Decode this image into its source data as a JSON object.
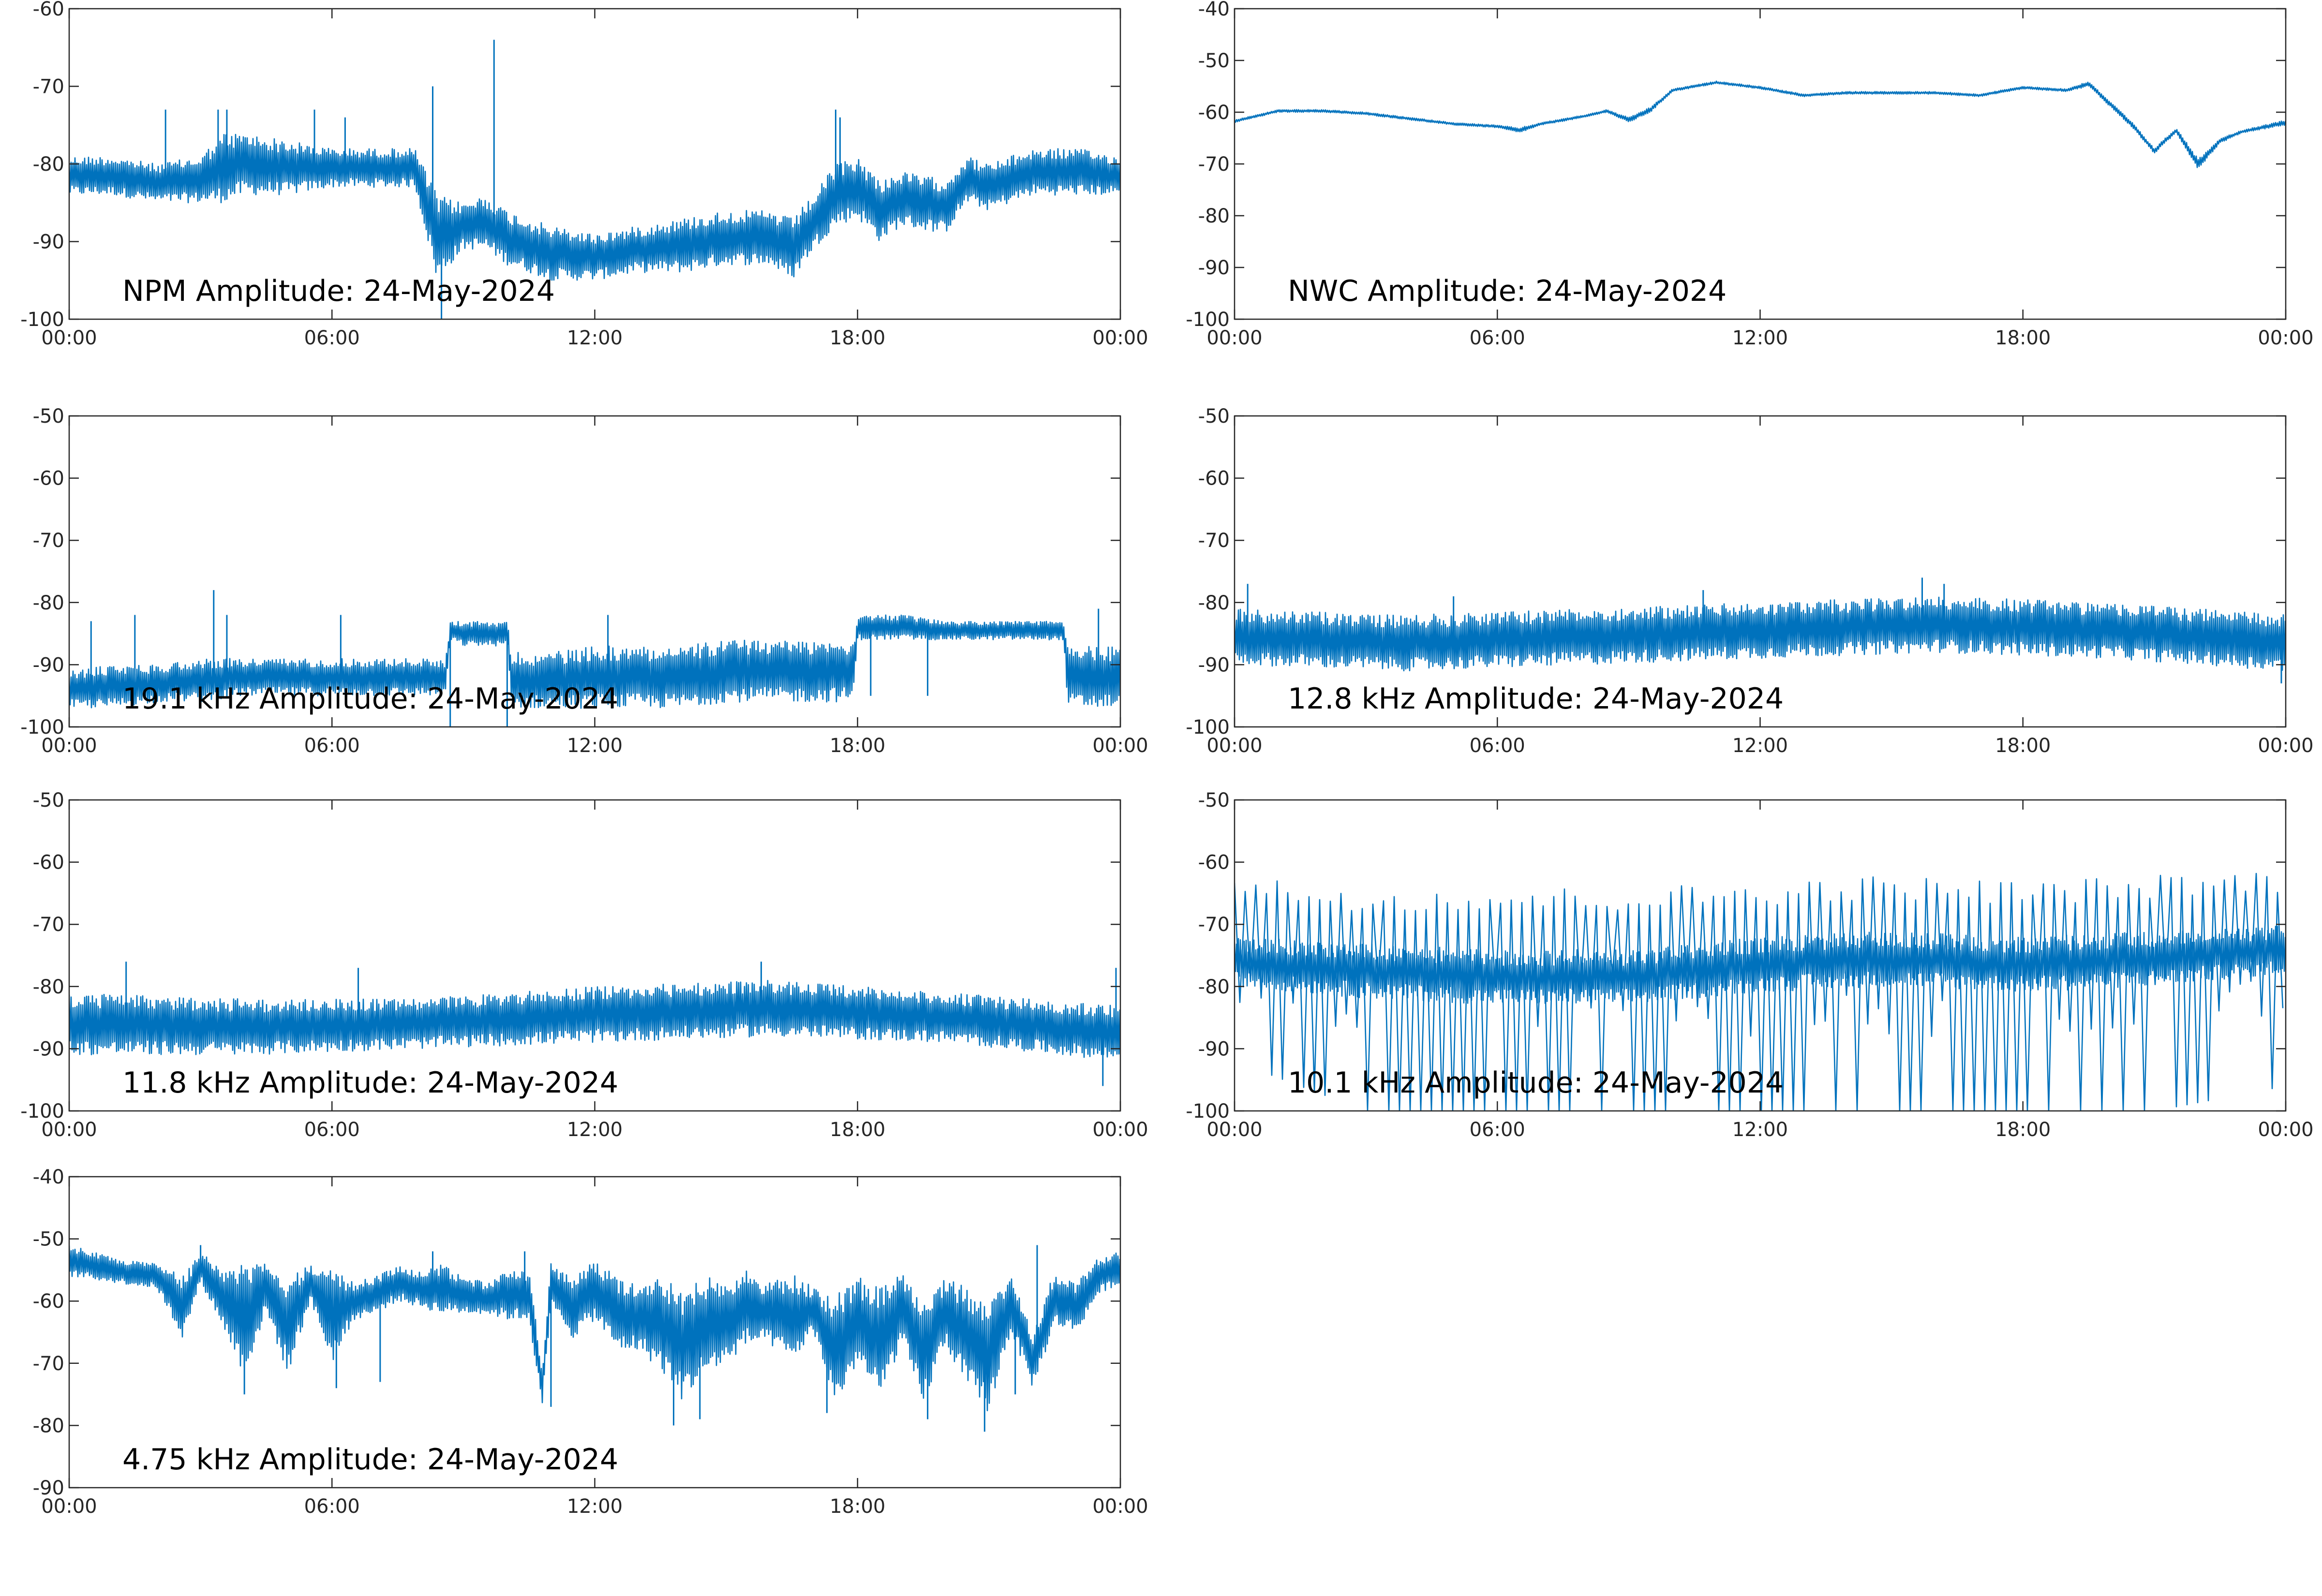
{
  "figure": {
    "line_color": "#0072BD",
    "axis_color": "#262626",
    "background": "#ffffff"
  },
  "chart_data": [
    {
      "type": "line",
      "title": "NPM Amplitude: 24-May-2024",
      "x_ticks": [
        "00:00",
        "06:00",
        "12:00",
        "18:00",
        "00:00"
      ],
      "x_range_hours": [
        0,
        24
      ],
      "ylim": [
        -100,
        -60
      ],
      "y_ticks": [
        -100,
        -90,
        -80,
        -70,
        -60
      ],
      "grid": false,
      "series": [
        {
          "kind": "band",
          "x": [
            0,
            1,
            2,
            3,
            3.5,
            4,
            5,
            6,
            7,
            7.9,
            8.4,
            9,
            9.5,
            10,
            11,
            12,
            13,
            14,
            15,
            16,
            16.5,
            17,
            17.5,
            18,
            18.5,
            19,
            20,
            20.5,
            21,
            22,
            23,
            24
          ],
          "upper": [
            -79,
            -79,
            -80,
            -79,
            -76,
            -76,
            -77,
            -78,
            -78,
            -78,
            -84,
            -85,
            -84,
            -86,
            -88,
            -89,
            -88,
            -87,
            -86,
            -86,
            -87,
            -84,
            -80,
            -79,
            -82,
            -81,
            -82,
            -79,
            -80,
            -78,
            -78,
            -79
          ],
          "lower": [
            -84,
            -84,
            -85,
            -85,
            -85,
            -84,
            -84,
            -83,
            -83,
            -83,
            -95,
            -91,
            -91,
            -93,
            -95,
            -95,
            -94,
            -94,
            -93,
            -93,
            -95,
            -91,
            -88,
            -87,
            -90,
            -88,
            -89,
            -85,
            -86,
            -84,
            -84,
            -84
          ],
          "spikes": [
            [
              2.2,
              -73
            ],
            [
              3.4,
              -73
            ],
            [
              3.6,
              -73
            ],
            [
              5.6,
              -73
            ],
            [
              6.3,
              -74
            ],
            [
              8.3,
              -70
            ],
            [
              8.5,
              -100
            ],
            [
              9.7,
              -64
            ],
            [
              17.5,
              -73
            ],
            [
              17.6,
              -74
            ]
          ]
        }
      ]
    },
    {
      "type": "line",
      "title": "NWC Amplitude: 24-May-2024",
      "x_ticks": [
        "00:00",
        "06:00",
        "12:00",
        "18:00",
        "00:00"
      ],
      "x_range_hours": [
        0,
        24
      ],
      "ylim": [
        -100,
        -40
      ],
      "y_ticks": [
        -100,
        -90,
        -80,
        -70,
        -60,
        -50,
        -40
      ],
      "grid": false,
      "series": [
        {
          "kind": "band",
          "x": [
            0,
            1,
            2,
            3,
            4,
            5,
            6,
            6.5,
            7,
            8,
            8.5,
            9,
            9.5,
            10,
            11,
            12,
            13,
            14,
            15,
            16,
            17,
            18,
            19,
            19.5,
            20,
            20.5,
            21,
            21.5,
            22,
            22.5,
            23,
            24
          ],
          "upper": [
            -61.5,
            -59.5,
            -59.5,
            -60,
            -61,
            -62,
            -62.5,
            -63,
            -62,
            -60.5,
            -59.5,
            -61,
            -59,
            -55.5,
            -54,
            -55,
            -56.5,
            -56,
            -56,
            -56,
            -56.5,
            -55,
            -55.5,
            -54,
            -58,
            -62,
            -67,
            -63,
            -69,
            -65,
            -63.5,
            -61.5
          ],
          "lower": [
            -62,
            -60,
            -60,
            -60.5,
            -61.5,
            -62.5,
            -63,
            -64,
            -62.5,
            -61,
            -60,
            -62,
            -60,
            -56,
            -54.5,
            -55.5,
            -57,
            -56.5,
            -56.5,
            -56.5,
            -57,
            -55.5,
            -56,
            -55,
            -59,
            -63,
            -68,
            -64,
            -71,
            -66,
            -64,
            -62.5
          ],
          "spikes": []
        }
      ]
    },
    {
      "type": "line",
      "title": "19.1 kHz Amplitude: 24-May-2024",
      "x_ticks": [
        "00:00",
        "06:00",
        "12:00",
        "18:00",
        "00:00"
      ],
      "x_range_hours": [
        0,
        24
      ],
      "ylim": [
        -100,
        -50
      ],
      "y_ticks": [
        -100,
        -90,
        -80,
        -70,
        -60,
        -50
      ],
      "grid": false,
      "series": [
        {
          "kind": "band",
          "x": [
            0,
            1,
            2,
            3,
            4,
            5,
            6,
            7,
            8,
            8.6,
            8.7,
            9,
            9.5,
            10,
            10.1,
            11,
            12,
            13,
            14,
            15,
            16,
            17,
            17.9,
            18,
            19,
            20,
            21,
            22,
            22.7,
            22.8,
            24
          ],
          "upper": [
            -91,
            -90,
            -90,
            -89,
            -89,
            -89,
            -89,
            -89,
            -89,
            -89,
            -83,
            -83,
            -83,
            -83,
            -88,
            -88,
            -87,
            -87,
            -87,
            -86,
            -86,
            -86,
            -86,
            -82,
            -82,
            -83,
            -83,
            -83,
            -83,
            -87,
            -87
          ],
          "lower": [
            -97,
            -97,
            -96,
            -96,
            -95,
            -95,
            -95,
            -95,
            -95,
            -95,
            -86,
            -87,
            -87,
            -87,
            -97,
            -97,
            -97,
            -97,
            -97,
            -96,
            -96,
            -96,
            -96,
            -86,
            -86,
            -86,
            -86,
            -86,
            -86,
            -97,
            -97
          ],
          "spikes": [
            [
              0.5,
              -83
            ],
            [
              1.5,
              -82
            ],
            [
              3.3,
              -78
            ],
            [
              3.6,
              -82
            ],
            [
              6.2,
              -82
            ],
            [
              8.7,
              -100
            ],
            [
              10.0,
              -100
            ],
            [
              12.3,
              -82
            ],
            [
              18.3,
              -95
            ],
            [
              19.6,
              -95
            ],
            [
              23.5,
              -81
            ]
          ]
        }
      ]
    },
    {
      "type": "line",
      "title": "12.8 kHz Amplitude: 24-May-2024",
      "x_ticks": [
        "00:00",
        "06:00",
        "12:00",
        "18:00",
        "00:00"
      ],
      "x_range_hours": [
        0,
        24
      ],
      "ylim": [
        -100,
        -50
      ],
      "y_ticks": [
        -100,
        -90,
        -80,
        -70,
        -60,
        -50
      ],
      "grid": false,
      "series": [
        {
          "kind": "band",
          "x": [
            0,
            4,
            8,
            12,
            16,
            20,
            24
          ],
          "upper": [
            -81,
            -82,
            -81,
            -80,
            -79,
            -80,
            -82
          ],
          "lower": [
            -90,
            -91,
            -90,
            -89,
            -88,
            -89,
            -91
          ],
          "spikes": [
            [
              0.3,
              -77
            ],
            [
              5.0,
              -79
            ],
            [
              10.7,
              -78
            ],
            [
              15.7,
              -76
            ],
            [
              16.2,
              -77
            ],
            [
              23.9,
              -93
            ]
          ]
        }
      ]
    },
    {
      "type": "line",
      "title": "11.8 kHz Amplitude: 24-May-2024",
      "x_ticks": [
        "00:00",
        "06:00",
        "12:00",
        "18:00",
        "00:00"
      ],
      "x_range_hours": [
        0,
        24
      ],
      "ylim": [
        -100,
        -50
      ],
      "y_ticks": [
        -100,
        -90,
        -80,
        -70,
        -60,
        -50
      ],
      "grid": false,
      "series": [
        {
          "kind": "band",
          "x": [
            0,
            4,
            8,
            12,
            16,
            20,
            24
          ],
          "upper": [
            -81,
            -82,
            -82,
            -80,
            -79,
            -81,
            -83
          ],
          "lower": [
            -91,
            -91,
            -90,
            -89,
            -88,
            -89,
            -92
          ],
          "spikes": [
            [
              1.3,
              -76
            ],
            [
              6.6,
              -77
            ],
            [
              15.8,
              -76
            ],
            [
              23.6,
              -96
            ],
            [
              23.9,
              -77
            ]
          ]
        }
      ]
    },
    {
      "type": "line",
      "title": "10.1 kHz Amplitude: 24-May-2024",
      "x_ticks": [
        "00:00",
        "06:00",
        "12:00",
        "18:00",
        "00:00"
      ],
      "x_range_hours": [
        0,
        24
      ],
      "ylim": [
        -100,
        -50
      ],
      "y_ticks": [
        -100,
        -90,
        -80,
        -70,
        -60,
        -50
      ],
      "grid": false,
      "series": [
        {
          "kind": "oscillation",
          "x": [
            0,
            3,
            6,
            9,
            12,
            15,
            18,
            21,
            24
          ],
          "peaks": [
            -64,
            -66,
            -66,
            -66,
            -65,
            -64,
            -65,
            -64,
            -63
          ],
          "mid_upper": [
            -72,
            -73,
            -74,
            -74,
            -72,
            -71,
            -72,
            -71,
            -70
          ],
          "mid_lower": [
            -80,
            -82,
            -83,
            -83,
            -81,
            -80,
            -81,
            -80,
            -78
          ],
          "troughs": [
            -92,
            -100,
            -100,
            -100,
            -100,
            -100,
            -100,
            -100,
            -96
          ]
        }
      ]
    },
    {
      "type": "line",
      "title": "4.75 kHz Amplitude: 24-May-2024",
      "x_ticks": [
        "00:00",
        "06:00",
        "12:00",
        "18:00",
        "00:00"
      ],
      "x_range_hours": [
        0,
        24
      ],
      "ylim": [
        -90,
        -40
      ],
      "y_ticks": [
        -90,
        -80,
        -70,
        -60,
        -50,
        -40
      ],
      "grid": false,
      "series": [
        {
          "kind": "band",
          "x": [
            0,
            1,
            2,
            2.6,
            3,
            3.5,
            4,
            4.5,
            5,
            5.5,
            6,
            6.5,
            7,
            7.5,
            8,
            8.5,
            9,
            9.5,
            10,
            10.5,
            10.8,
            11,
            11.5,
            12,
            12.5,
            13,
            13.5,
            14,
            14.5,
            15,
            15.5,
            16,
            16.5,
            17,
            17.5,
            18,
            18.5,
            19,
            19.5,
            20,
            20.5,
            21,
            21.5,
            22,
            22.5,
            23,
            23.5,
            24
          ],
          "upper": [
            -51,
            -53,
            -54,
            -56,
            -52,
            -55,
            -54,
            -53,
            -56,
            -54,
            -55,
            -57,
            -56,
            -54,
            -55,
            -54,
            -56,
            -57,
            -55,
            -55,
            -71,
            -54,
            -56,
            -53,
            -56,
            -57,
            -56,
            -58,
            -56,
            -57,
            -55,
            -57,
            -55,
            -58,
            -59,
            -56,
            -58,
            -55,
            -60,
            -56,
            -58,
            -60,
            -55,
            -65,
            -55,
            -57,
            -53,
            -52
          ],
          "lower": [
            -56,
            -57,
            -58,
            -66,
            -57,
            -64,
            -72,
            -62,
            -72,
            -60,
            -70,
            -63,
            -62,
            -60,
            -61,
            -62,
            -62,
            -62,
            -63,
            -63,
            -77,
            -61,
            -66,
            -63,
            -68,
            -68,
            -71,
            -76,
            -72,
            -70,
            -67,
            -67,
            -70,
            -65,
            -77,
            -70,
            -76,
            -67,
            -77,
            -67,
            -74,
            -78,
            -65,
            -74,
            -64,
            -65,
            -59,
            -57
          ],
          "spikes": [
            [
              3.0,
              -51
            ],
            [
              4.0,
              -75
            ],
            [
              6.1,
              -74
            ],
            [
              7.1,
              -73
            ],
            [
              8.3,
              -52
            ],
            [
              10.4,
              -52
            ],
            [
              11.0,
              -77
            ],
            [
              13.8,
              -80
            ],
            [
              14.4,
              -79
            ],
            [
              17.3,
              -78
            ],
            [
              19.6,
              -79
            ],
            [
              20.9,
              -81
            ],
            [
              21.6,
              -75
            ],
            [
              22.1,
              -51
            ],
            [
              23.2,
              -56
            ]
          ]
        }
      ]
    }
  ]
}
